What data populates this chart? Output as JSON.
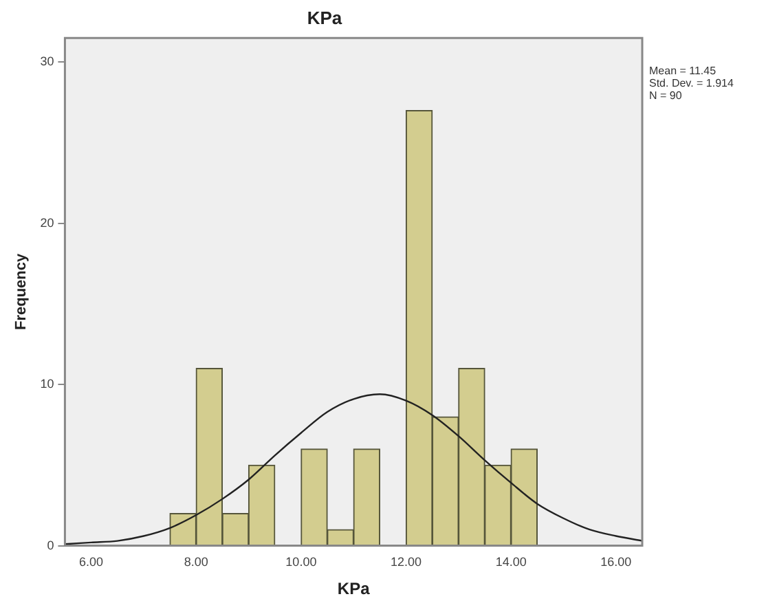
{
  "chart_data": {
    "type": "histogram",
    "title": "KPa",
    "xlabel": "KPa",
    "ylabel": "Frequency",
    "bins": [
      7.5,
      8,
      8.5,
      9,
      9.5,
      10,
      10.5,
      11,
      11.5,
      12,
      12.5,
      13,
      13.5,
      14,
      14.5
    ],
    "values": [
      2,
      11,
      2,
      5,
      0,
      6,
      1,
      6,
      0,
      27,
      8,
      11,
      5,
      6
    ],
    "color": "#d3cd8f",
    "series": [
      {
        "type": "line",
        "color": "#222222",
        "x": [
          5.5,
          6,
          6.5,
          7,
          7.5,
          8,
          8.5,
          9,
          9.5,
          10,
          10.5,
          11,
          11.5,
          12,
          12.5,
          13,
          13.5,
          14,
          14.5,
          15,
          15.5,
          16,
          16.5
        ],
        "values": [
          0.1,
          0.2,
          0.3,
          0.6,
          1.1,
          1.9,
          2.9,
          4.1,
          5.6,
          7.0,
          8.3,
          9.1,
          9.4,
          9.0,
          8.1,
          6.8,
          5.3,
          3.9,
          2.6,
          1.7,
          1.0,
          0.6,
          0.3
        ]
      }
    ],
    "xlim": [
      5.5,
      16.5
    ],
    "xticks": [
      {
        "value": 6,
        "label": "6.00"
      },
      {
        "value": 8,
        "label": "8.00"
      },
      {
        "value": 10,
        "label": "10.00"
      },
      {
        "value": 12,
        "label": "12.00"
      },
      {
        "value": 14,
        "label": "14.00"
      },
      {
        "value": 16,
        "label": "16.00"
      }
    ],
    "ylim": [
      0,
      31.5
    ],
    "yticks": [
      0,
      10,
      20,
      30
    ],
    "grid": false,
    "annotations": [
      "Mean = 11.45\nStd. Dev. = 1.914\nN = 90"
    ]
  }
}
